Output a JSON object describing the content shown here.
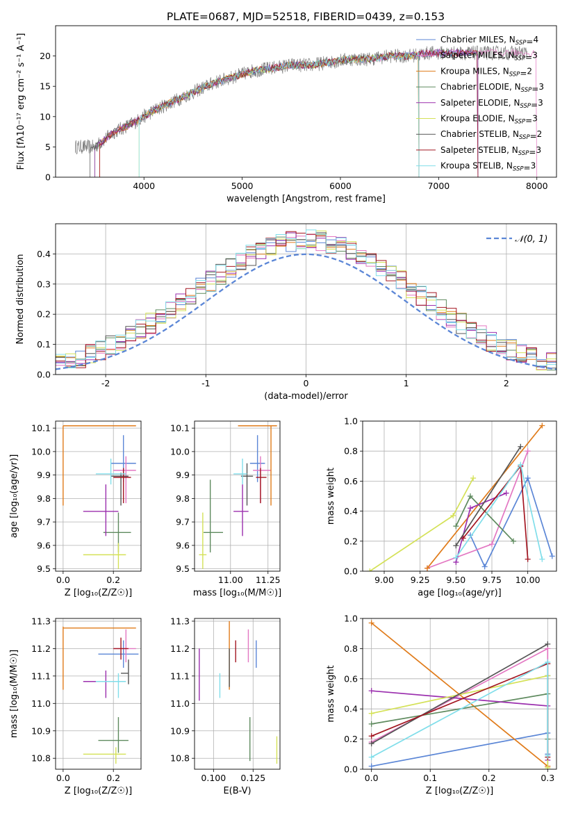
{
  "figure": {
    "title": "PLATE=0687, MJD=52518, FIBERID=0439, z=0.153"
  },
  "colors": {
    "axis": "#000000",
    "grid": "#b0b0b0",
    "spectrum": "#7f7f7f",
    "normal_curve": "#5b86d6"
  },
  "models": [
    {
      "name": "Chabrier MILES",
      "nssp": 4,
      "color": "#5b86d6"
    },
    {
      "name": "Salpeter MILES",
      "nssp": 3,
      "color": "#e377c2"
    },
    {
      "name": "Kroupa MILES",
      "nssp": 2,
      "color": "#e07b1a"
    },
    {
      "name": "Chabrier ELODIE",
      "nssp": 3,
      "color": "#5e8a5e"
    },
    {
      "name": "Salpeter ELODIE",
      "nssp": 3,
      "color": "#9b2fae"
    },
    {
      "name": "Kroupa ELODIE",
      "nssp": 3,
      "color": "#d4e157"
    },
    {
      "name": "Chabrier STELIB",
      "nssp": 2,
      "color": "#555555"
    },
    {
      "name": "Salpeter STELIB",
      "nssp": 3,
      "color": "#a31621"
    },
    {
      "name": "Kroupa STELIB",
      "nssp": 3,
      "color": "#80deea"
    }
  ],
  "nssp_label": "N",
  "nssp_sub": "SSP",
  "chart_data": [
    {
      "id": "spectrum",
      "type": "line",
      "xlabel": "wavelength [Angstrom, rest frame]",
      "ylabel": "Flux [fλ10⁻¹⁷ erg cm⁻² s⁻¹ A⁻¹]",
      "xlim": [
        3100,
        8200
      ],
      "ylim": [
        0,
        25
      ],
      "xticks": [
        4000,
        5000,
        6000,
        7000,
        8000
      ],
      "yticks": [
        0,
        5,
        10,
        15,
        20
      ],
      "legend": "upper right",
      "grid": false,
      "continuum": {
        "x": [
          3300,
          3500,
          3700,
          3900,
          4100,
          4300,
          4500,
          4700,
          4900,
          5100,
          5300,
          5500,
          5700,
          5900,
          6100,
          6300,
          6500,
          6700,
          6900,
          7100,
          7300,
          7500,
          7700,
          7900
        ],
        "y": [
          5.0,
          5.0,
          7.5,
          9.0,
          11.0,
          12.5,
          14.0,
          15.5,
          16.5,
          17.5,
          18.0,
          18.5,
          18.5,
          19.0,
          19.5,
          19.5,
          20.0,
          20.0,
          20.5,
          20.5,
          20.5,
          20.5,
          20.5,
          20.5
        ]
      },
      "model_start": [
        3550,
        3550,
        3550,
        3500,
        3500,
        3950,
        3450,
        3550,
        3950
      ],
      "model_end": [
        7400,
        8000,
        6800,
        7400,
        7400,
        6800,
        6800,
        7400,
        6800
      ]
    },
    {
      "id": "residuals",
      "type": "histogram",
      "xlabel": "(data-model)/error",
      "ylabel": "Normed distribution",
      "xlim": [
        -2.5,
        2.5
      ],
      "ylim": [
        0,
        0.5
      ],
      "xticks": [
        -2,
        -1,
        0,
        1,
        2
      ],
      "yticks": [
        0.0,
        0.1,
        0.2,
        0.3,
        0.4
      ],
      "grid": true,
      "legend": "upper right",
      "normal_label": "𝒩(0, 1)",
      "bin_width": 0.1
    },
    {
      "id": "age-vs-Z",
      "type": "errorbar",
      "xlabel": "Z [log₁₀(Z/Z☉)]",
      "ylabel": "age  [log₁₀(age/yr)]",
      "xlim": [
        -0.03,
        0.31
      ],
      "ylim": [
        9.49,
        10.13
      ],
      "xticks": [
        0.0,
        0.2
      ],
      "yticks": [
        9.5,
        9.6,
        9.7,
        9.8,
        9.9,
        10.0,
        10.1
      ],
      "grid": true,
      "points": [
        {
          "model": 0,
          "x": 0.24,
          "y": 9.95,
          "xerr": [
            0.19,
            0.29
          ],
          "yerr": [
            9.87,
            10.07
          ]
        },
        {
          "model": 1,
          "x": 0.25,
          "y": 9.92,
          "xerr": [
            0.2,
            0.29
          ],
          "yerr": [
            9.78,
            9.98
          ]
        },
        {
          "model": 2,
          "x": 0.0,
          "y": 10.11,
          "xerr": [
            0.0,
            0.29
          ],
          "yerr": [
            9.77,
            10.11
          ]
        },
        {
          "model": 3,
          "x": 0.22,
          "y": 9.655,
          "xerr": [
            0.16,
            0.27
          ],
          "yerr": [
            9.57,
            9.74
          ]
        },
        {
          "model": 4,
          "x": 0.17,
          "y": 9.745,
          "xerr": [
            0.08,
            0.22
          ],
          "yerr": [
            9.64,
            9.86
          ]
        },
        {
          "model": 5,
          "x": 0.22,
          "y": 9.56,
          "xerr": [
            0.08,
            0.25
          ],
          "yerr": [
            9.5,
            9.61
          ]
        },
        {
          "model": 6,
          "x": 0.23,
          "y": 9.895,
          "xerr": [
            0.19,
            0.26
          ],
          "yerr": [
            9.77,
            9.91
          ]
        },
        {
          "model": 7,
          "x": 0.24,
          "y": 9.89,
          "xerr": [
            0.2,
            0.27
          ],
          "yerr": [
            9.78,
            9.93
          ]
        },
        {
          "model": 8,
          "x": 0.19,
          "y": 9.905,
          "xerr": [
            0.13,
            0.25
          ],
          "yerr": [
            9.86,
            9.97
          ]
        }
      ]
    },
    {
      "id": "age-vs-mass",
      "type": "errorbar",
      "xlabel": "mass [log₁₀(M/M☉)]",
      "ylabel": "",
      "xlim": [
        10.76,
        11.33
      ],
      "ylim": [
        9.49,
        10.13
      ],
      "xticks": [
        11.0,
        11.25
      ],
      "yticks": [
        9.5,
        9.6,
        9.7,
        9.8,
        9.9,
        10.0,
        10.1
      ],
      "grid": true,
      "points": [
        {
          "model": 0,
          "x": 11.18,
          "y": 9.95,
          "xerr": [
            11.13,
            11.23
          ],
          "yerr": [
            9.87,
            10.07
          ]
        },
        {
          "model": 1,
          "x": 11.2,
          "y": 9.92,
          "xerr": [
            11.15,
            11.27
          ],
          "yerr": [
            9.78,
            9.98
          ]
        },
        {
          "model": 2,
          "x": 11.27,
          "y": 10.11,
          "xerr": [
            11.05,
            11.31
          ],
          "yerr": [
            9.77,
            10.11
          ]
        },
        {
          "model": 3,
          "x": 10.865,
          "y": 9.655,
          "xerr": [
            10.82,
            10.95
          ],
          "yerr": [
            9.57,
            9.88
          ]
        },
        {
          "model": 4,
          "x": 11.08,
          "y": 9.745,
          "xerr": [
            11.02,
            11.12
          ],
          "yerr": [
            9.64,
            9.86
          ]
        },
        {
          "model": 5,
          "x": 10.815,
          "y": 9.56,
          "xerr": [
            10.79,
            10.84
          ],
          "yerr": [
            9.5,
            9.74
          ]
        },
        {
          "model": 6,
          "x": 11.11,
          "y": 9.895,
          "xerr": [
            11.07,
            11.15
          ],
          "yerr": [
            9.77,
            9.95
          ]
        },
        {
          "model": 7,
          "x": 11.2,
          "y": 9.89,
          "xerr": [
            11.17,
            11.24
          ],
          "yerr": [
            9.78,
            9.93
          ]
        },
        {
          "model": 8,
          "x": 11.08,
          "y": 9.905,
          "xerr": [
            11.02,
            11.11
          ],
          "yerr": [
            9.86,
            9.97
          ]
        }
      ]
    },
    {
      "id": "weight-vs-age",
      "type": "line",
      "xlabel": "age  [log₁₀(age/yr)]",
      "ylabel": "mass weight",
      "xlim": [
        8.85,
        10.2
      ],
      "ylim": [
        0,
        1.0
      ],
      "xticks": [
        9.0,
        9.25,
        9.5,
        9.75,
        10.0
      ],
      "yticks": [
        0.0,
        0.2,
        0.4,
        0.6,
        0.8,
        1.0
      ],
      "grid": true,
      "series": [
        {
          "model": 0,
          "x": [
            10.17,
            10.0,
            9.7,
            9.6
          ],
          "y": [
            0.1,
            0.62,
            0.03,
            0.24
          ]
        },
        {
          "model": 1,
          "x": [
            9.3,
            9.75,
            10.0
          ],
          "y": [
            0.02,
            0.18,
            0.8
          ]
        },
        {
          "model": 2,
          "x": [
            9.3,
            10.1
          ],
          "y": [
            0.02,
            0.97
          ]
        },
        {
          "model": 3,
          "x": [
            9.9,
            9.6,
            9.5
          ],
          "y": [
            0.2,
            0.5,
            0.3
          ]
        },
        {
          "model": 4,
          "x": [
            9.5,
            9.6,
            9.85
          ],
          "y": [
            0.06,
            0.42,
            0.52
          ]
        },
        {
          "model": 5,
          "x": [
            8.9,
            9.48,
            9.62
          ],
          "y": [
            0.0,
            0.37,
            0.62
          ]
        },
        {
          "model": 6,
          "x": [
            9.5,
            9.95
          ],
          "y": [
            0.17,
            0.83
          ]
        },
        {
          "model": 7,
          "x": [
            9.55,
            9.95,
            10.0
          ],
          "y": [
            0.22,
            0.7,
            0.08
          ]
        },
        {
          "model": 8,
          "x": [
            9.5,
            9.95,
            10.1
          ],
          "y": [
            0.09,
            0.71,
            0.08
          ]
        }
      ]
    },
    {
      "id": "mass-vs-Z",
      "type": "errorbar",
      "xlabel": "Z [log₁₀(Z/Z☉)]",
      "ylabel": "mass [log₁₀(M/M☉)]",
      "xlim": [
        -0.03,
        0.31
      ],
      "ylim": [
        10.76,
        11.31
      ],
      "xticks": [
        0.0,
        0.2
      ],
      "yticks": [
        10.8,
        10.9,
        11.0,
        11.1,
        11.2,
        11.3
      ],
      "grid": true,
      "points": [
        {
          "model": 0,
          "x": 0.24,
          "y": 11.18,
          "xerr": [
            0.14,
            0.3
          ],
          "yerr": [
            11.13,
            11.23
          ]
        },
        {
          "model": 1,
          "x": 0.25,
          "y": 11.2,
          "xerr": [
            0.2,
            0.29
          ],
          "yerr": [
            11.15,
            11.27
          ]
        },
        {
          "model": 2,
          "x": 0.0,
          "y": 11.275,
          "xerr": [
            0.0,
            0.29
          ],
          "yerr": [
            11.05,
            11.28
          ]
        },
        {
          "model": 3,
          "x": 0.22,
          "y": 10.865,
          "xerr": [
            0.14,
            0.26
          ],
          "yerr": [
            10.82,
            10.95
          ]
        },
        {
          "model": 4,
          "x": 0.17,
          "y": 11.08,
          "xerr": [
            0.08,
            0.22
          ],
          "yerr": [
            11.02,
            11.12
          ]
        },
        {
          "model": 5,
          "x": 0.21,
          "y": 10.815,
          "xerr": [
            0.08,
            0.25
          ],
          "yerr": [
            10.78,
            10.84
          ]
        },
        {
          "model": 6,
          "x": 0.26,
          "y": 11.11,
          "xerr": [
            0.23,
            0.26
          ],
          "yerr": [
            11.07,
            11.16
          ]
        },
        {
          "model": 7,
          "x": 0.23,
          "y": 11.2,
          "xerr": [
            0.2,
            0.26
          ],
          "yerr": [
            11.16,
            11.24
          ]
        },
        {
          "model": 8,
          "x": 0.22,
          "y": 11.08,
          "xerr": [
            0.13,
            0.25
          ],
          "yerr": [
            11.02,
            11.11
          ]
        }
      ]
    },
    {
      "id": "mass-vs-ebv",
      "type": "errorbar",
      "xlabel": "E(B-V)",
      "ylabel": "",
      "xlim": [
        0.088,
        0.142
      ],
      "ylim": [
        10.76,
        11.31
      ],
      "xticks": [
        0.1,
        0.125
      ],
      "yticks": [
        10.8,
        10.9,
        11.0,
        11.1,
        11.2,
        11.3
      ],
      "grid": true,
      "points": [
        {
          "model": 0,
          "x": 0.127,
          "y": 11.18,
          "xerr": [
            0.127,
            0.127
          ],
          "yerr": [
            11.13,
            11.23
          ]
        },
        {
          "model": 1,
          "x": 0.122,
          "y": 11.2,
          "xerr": [
            0.122,
            0.122
          ],
          "yerr": [
            11.15,
            11.27
          ]
        },
        {
          "model": 2,
          "x": 0.11,
          "y": 11.2,
          "xerr": [
            0.11,
            0.11
          ],
          "yerr": [
            11.05,
            11.3
          ]
        },
        {
          "model": 3,
          "x": 0.123,
          "y": 10.87,
          "xerr": [
            0.123,
            0.123
          ],
          "yerr": [
            10.79,
            10.95
          ]
        },
        {
          "model": 4,
          "x": 0.091,
          "y": 11.11,
          "xerr": [
            0.091,
            0.091
          ],
          "yerr": [
            11.01,
            11.2
          ]
        },
        {
          "model": 5,
          "x": 0.14,
          "y": 10.83,
          "xerr": [
            0.14,
            0.14
          ],
          "yerr": [
            10.78,
            10.88
          ]
        },
        {
          "model": 6,
          "x": 0.11,
          "y": 11.13,
          "xerr": [
            0.11,
            0.11
          ],
          "yerr": [
            11.06,
            11.2
          ]
        },
        {
          "model": 7,
          "x": 0.114,
          "y": 11.19,
          "xerr": [
            0.114,
            0.114
          ],
          "yerr": [
            11.15,
            11.23
          ]
        },
        {
          "model": 8,
          "x": 0.104,
          "y": 11.07,
          "xerr": [
            0.104,
            0.104
          ],
          "yerr": [
            11.02,
            11.11
          ]
        }
      ]
    },
    {
      "id": "weight-vs-Z",
      "type": "line",
      "xlabel": "Z [log₁₀(Z/Z☉)]",
      "ylabel": "mass weight",
      "xlim": [
        -0.015,
        0.315
      ],
      "ylim": [
        0,
        1.0
      ],
      "xticks": [
        0.0,
        0.1,
        0.2,
        0.3
      ],
      "yticks": [
        0.0,
        0.2,
        0.4,
        0.6,
        0.8,
        1.0
      ],
      "grid": true,
      "series": [
        {
          "model": 0,
          "x": [
            0.0,
            0.3,
            0.3,
            0.3
          ],
          "y": [
            0.02,
            0.24,
            0.62,
            0.1
          ]
        },
        {
          "model": 1,
          "x": [
            0.0,
            0.3,
            0.3
          ],
          "y": [
            0.18,
            0.8,
            0.02
          ]
        },
        {
          "model": 2,
          "x": [
            0.0,
            0.3
          ],
          "y": [
            0.97,
            0.02
          ]
        },
        {
          "model": 3,
          "x": [
            0.0,
            0.3,
            0.3
          ],
          "y": [
            0.3,
            0.5,
            0.2
          ]
        },
        {
          "model": 4,
          "x": [
            0.0,
            0.3,
            0.3
          ],
          "y": [
            0.52,
            0.42,
            0.06
          ]
        },
        {
          "model": 5,
          "x": [
            0.0,
            0.3,
            0.3
          ],
          "y": [
            0.37,
            0.62,
            0.01
          ]
        },
        {
          "model": 6,
          "x": [
            0.0,
            0.3
          ],
          "y": [
            0.17,
            0.83
          ]
        },
        {
          "model": 7,
          "x": [
            0.0,
            0.3,
            0.3
          ],
          "y": [
            0.22,
            0.7,
            0.08
          ]
        },
        {
          "model": 8,
          "x": [
            0.0,
            0.3,
            0.3
          ],
          "y": [
            0.08,
            0.71,
            0.09
          ]
        }
      ]
    }
  ]
}
